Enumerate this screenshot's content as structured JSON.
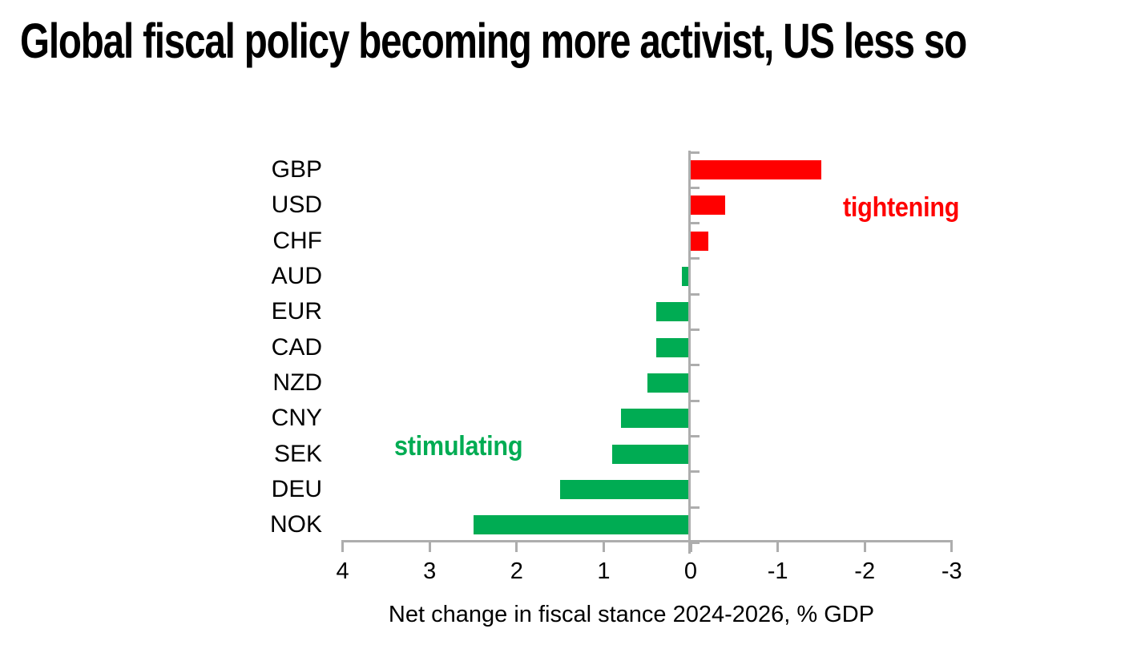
{
  "title": "Global fiscal policy becoming more activist, US less so",
  "chart_data": {
    "type": "bar",
    "orientation": "horizontal",
    "title": "Global fiscal policy becoming more activist, US less so",
    "categories": [
      "GBP",
      "USD",
      "CHF",
      "AUD",
      "EUR",
      "CAD",
      "NZD",
      "CNY",
      "SEK",
      "DEU",
      "NOK"
    ],
    "values": [
      -1.5,
      -0.4,
      -0.2,
      0.1,
      0.4,
      0.4,
      0.5,
      0.8,
      0.9,
      1.5,
      2.5
    ],
    "xlabel": "Net change in fiscal stance 2024-2026, % GDP",
    "ylabel": "",
    "x_ticks": [
      "4",
      "3",
      "2",
      "1",
      "0",
      "-1",
      "-2",
      "-3"
    ],
    "x_tick_values": [
      4,
      3,
      2,
      1,
      0,
      -1,
      -2,
      -3
    ],
    "xlim": [
      4,
      -3
    ],
    "x_axis_reversed": true,
    "grid": false,
    "legend": false,
    "bar_color_rule": "positive values (stimulating) green extend left of zero line, negative values (tightening) red extend right of zero line",
    "colors": {
      "positive": "#00AC53",
      "negative": "#FF0000",
      "axis": "#ADADAD",
      "text": "#000000",
      "background": "#FFFFFF"
    },
    "annotations": [
      {
        "text": "tightening",
        "color": "#FF0000"
      },
      {
        "text": "stimulating",
        "color": "#00AC53"
      }
    ]
  }
}
